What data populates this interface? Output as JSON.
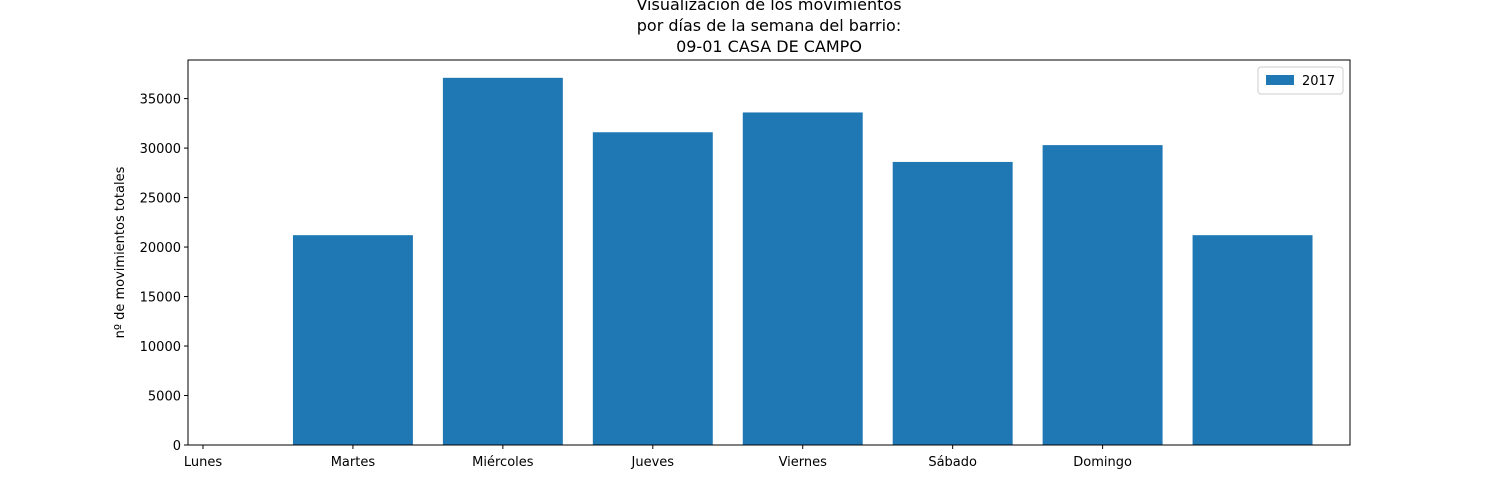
{
  "chart_data": {
    "type": "bar",
    "title_lines": [
      "Visualización de los movimientos",
      "por días de la semana del barrio:",
      "09-01 CASA DE CAMPO"
    ],
    "xlabel": "",
    "ylabel": "nº de movimientos totales",
    "tick_positions": [
      0,
      1,
      2,
      3,
      4,
      5,
      6
    ],
    "tick_labels": [
      "Lunes",
      "Martes",
      "Miércoles",
      "Jueves",
      "Viernes",
      "Sábado",
      "Domingo"
    ],
    "xlim": [
      -0.1,
      7.65
    ],
    "ylim": [
      0,
      38900
    ],
    "yticks": [
      0,
      5000,
      10000,
      15000,
      20000,
      25000,
      30000,
      35000
    ],
    "bar_width": 0.8,
    "series": [
      {
        "name": "2017",
        "color": "#1f77b4",
        "x": [
          1,
          2,
          3,
          4,
          5,
          6,
          7
        ],
        "values": [
          21200,
          37100,
          31600,
          33600,
          28600,
          30300,
          21200
        ]
      }
    ],
    "legend_position": "top-right",
    "grid": false
  }
}
